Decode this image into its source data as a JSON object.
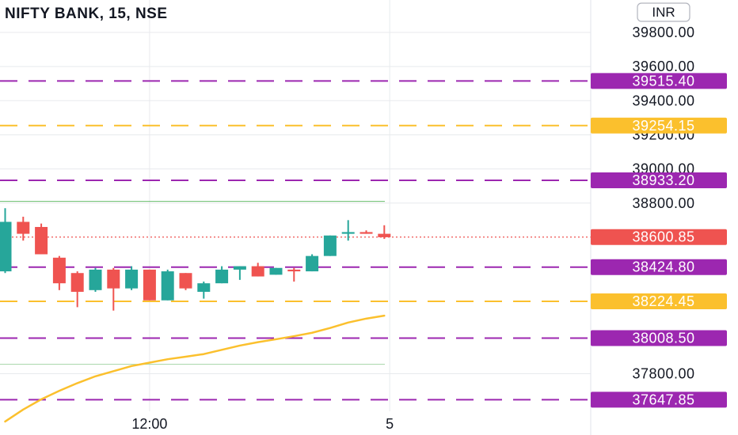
{
  "header": {
    "symbol_title": "NIFTY BANK, 15, NSE",
    "currency": "INR"
  },
  "chart_data": {
    "type": "candlestick",
    "title": "NIFTY BANK, 15, NSE",
    "ylim": [
      37580,
      39990
    ],
    "y_ticks": [
      "39800.00",
      "39600.00",
      "39400.00",
      "39200.00",
      "39000.00",
      "38800.00",
      "37800.00"
    ],
    "x_ticks": [
      {
        "label": "12:00",
        "bar": 8
      },
      {
        "label": "5",
        "bar": 21.3
      }
    ],
    "last_price": {
      "value": 38600.85,
      "label": "38600.85",
      "color": "#ef5350"
    },
    "levels": [
      {
        "value": 39515.4,
        "label": "39515.40",
        "color": "#9c27b0"
      },
      {
        "value": 39254.15,
        "label": "39254.15",
        "color": "#fbc02d"
      },
      {
        "value": 38933.2,
        "label": "38933.20",
        "color": "#9c27b0"
      },
      {
        "value": 38424.8,
        "label": "38424.80",
        "color": "#9c27b0"
      },
      {
        "value": 38224.45,
        "label": "38224.45",
        "color": "#fbc02d"
      },
      {
        "value": 38008.5,
        "label": "38008.50",
        "color": "#9c27b0"
      },
      {
        "value": 37647.85,
        "label": "37647.85",
        "color": "#9c27b0"
      }
    ],
    "hlines": [
      {
        "value": 38810,
        "color": "#66bb6a"
      },
      {
        "value": 37855,
        "color": "#a5d6a7"
      }
    ],
    "candles": [
      {
        "o": 38400,
        "h": 38770,
        "l": 38390,
        "c": 38690
      },
      {
        "o": 38690,
        "h": 38720,
        "l": 38580,
        "c": 38620
      },
      {
        "o": 38660,
        "h": 38680,
        "l": 38500,
        "c": 38500
      },
      {
        "o": 38480,
        "h": 38490,
        "l": 38290,
        "c": 38330
      },
      {
        "o": 38390,
        "h": 38400,
        "l": 38190,
        "c": 38280
      },
      {
        "o": 38290,
        "h": 38420,
        "l": 38280,
        "c": 38410
      },
      {
        "o": 38410,
        "h": 38420,
        "l": 38170,
        "c": 38300
      },
      {
        "o": 38300,
        "h": 38430,
        "l": 38290,
        "c": 38410
      },
      {
        "o": 38410,
        "h": 38410,
        "l": 38230,
        "c": 38230
      },
      {
        "o": 38230,
        "h": 38410,
        "l": 38230,
        "c": 38400
      },
      {
        "o": 38390,
        "h": 38390,
        "l": 38290,
        "c": 38300
      },
      {
        "o": 38280,
        "h": 38340,
        "l": 38240,
        "c": 38330
      },
      {
        "o": 38330,
        "h": 38430,
        "l": 38330,
        "c": 38410
      },
      {
        "o": 38410,
        "h": 38430,
        "l": 38350,
        "c": 38430
      },
      {
        "o": 38430,
        "h": 38450,
        "l": 38370,
        "c": 38370
      },
      {
        "o": 38380,
        "h": 38420,
        "l": 38380,
        "c": 38420
      },
      {
        "o": 38410,
        "h": 38420,
        "l": 38340,
        "c": 38400
      },
      {
        "o": 38400,
        "h": 38500,
        "l": 38400,
        "c": 38490
      },
      {
        "o": 38490,
        "h": 38610,
        "l": 38490,
        "c": 38610
      },
      {
        "o": 38620,
        "h": 38700,
        "l": 38580,
        "c": 38630
      },
      {
        "o": 38630,
        "h": 38640,
        "l": 38620,
        "c": 38620
      },
      {
        "o": 38620,
        "h": 38670,
        "l": 38590,
        "c": 38600
      }
    ],
    "moving_average": {
      "color": "#fbc02d",
      "values": [
        37520,
        37590,
        37650,
        37700,
        37745,
        37785,
        37815,
        37845,
        37865,
        37885,
        37900,
        37915,
        37940,
        37965,
        37985,
        38002,
        38020,
        38040,
        38068,
        38100,
        38123,
        38140
      ]
    },
    "colors": {
      "up": "#26a69a",
      "down": "#ef5350",
      "grid": "#e8eaed"
    }
  }
}
